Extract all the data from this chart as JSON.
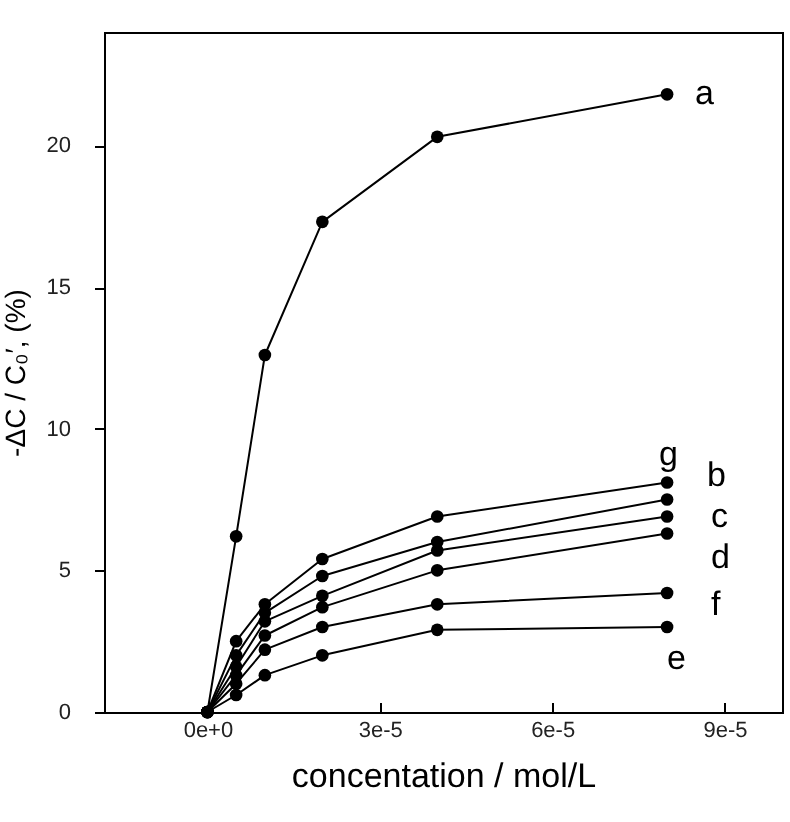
{
  "chart_data": {
    "type": "line",
    "xlabel": "concentation / mol/L",
    "ylabel": "-ΔC / C₀′, (%)",
    "x": [
      0,
      5e-06,
      1e-05,
      2e-05,
      4e-05,
      8e-05
    ],
    "series": [
      {
        "name": "a",
        "color": "#000000",
        "values": [
          0,
          6.2,
          12.6,
          17.3,
          20.3,
          21.8
        ]
      },
      {
        "name": "g",
        "color": "#000000",
        "values": [
          0,
          2.5,
          3.8,
          5.4,
          6.9,
          8.1
        ]
      },
      {
        "name": "b",
        "color": "#000000",
        "values": [
          0,
          2.0,
          3.5,
          4.8,
          6.0,
          7.5
        ]
      },
      {
        "name": "c",
        "color": "#000000",
        "values": [
          0,
          1.6,
          3.2,
          4.1,
          5.7,
          6.9
        ]
      },
      {
        "name": "d",
        "color": "#000000",
        "values": [
          0,
          1.3,
          2.7,
          3.7,
          5.0,
          6.3
        ]
      },
      {
        "name": "f",
        "color": "#000000",
        "values": [
          0,
          1.0,
          2.2,
          3.0,
          3.8,
          4.2
        ]
      },
      {
        "name": "e",
        "color": "#000000",
        "values": [
          0,
          0.6,
          1.3,
          2.0,
          2.9,
          3.0
        ]
      }
    ],
    "xlim": [
      -1.8e-05,
      0.0001
    ],
    "ylim": [
      0,
      24
    ],
    "xticks": [
      {
        "value": 0,
        "label": "0e+0"
      },
      {
        "value": 3e-05,
        "label": "3e-5"
      },
      {
        "value": 6e-05,
        "label": "6e-5"
      },
      {
        "value": 9e-05,
        "label": "9e-5"
      }
    ],
    "yticks": [
      0,
      5,
      10,
      15,
      20
    ],
    "grid": false,
    "legend": false,
    "marker": "circle",
    "line_style": "solid"
  }
}
